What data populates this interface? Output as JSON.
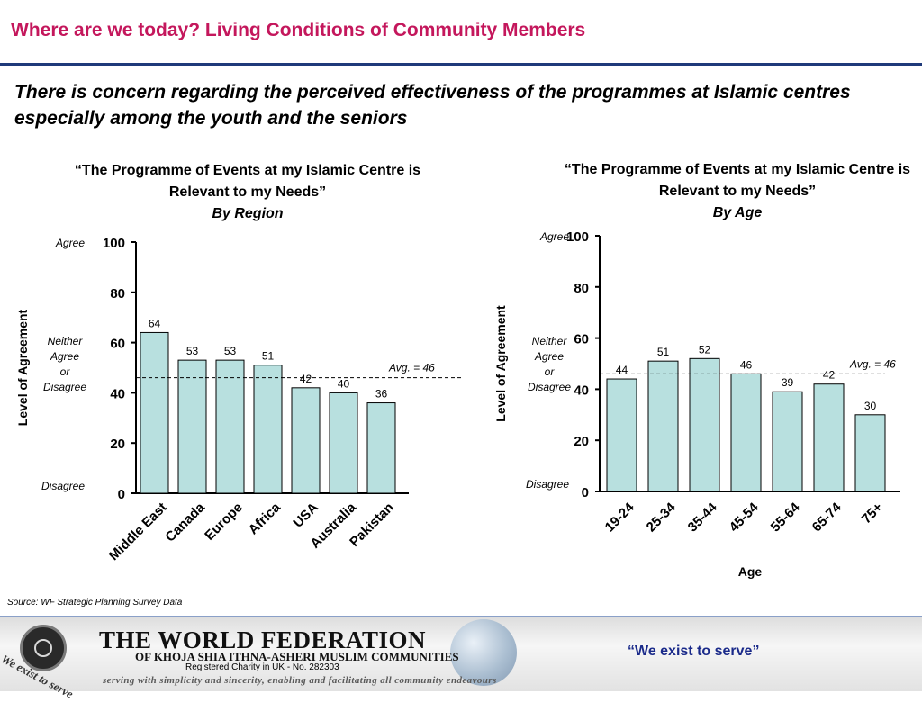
{
  "header": {
    "title": "Where are we today? Living Conditions of Community Members",
    "subtitle": "There is concern regarding the perceived effectiveness of the programmes at Islamic centres especially among the youth and the seniors"
  },
  "colors": {
    "title": "#c4175c",
    "bar_fill": "#b8e0df",
    "rule": "#1f3a7a",
    "motto": "#1a2a8a"
  },
  "chart_data": [
    {
      "type": "bar",
      "title": "“The Programme of Events at my Islamic Centre is Relevant to my Needs”",
      "subtitle": "By Region",
      "xlabel": "",
      "ylabel": "Level of Agreement",
      "categories": [
        "Middle East",
        "Canada",
        "Europe",
        "Africa",
        "USA",
        "Australia",
        "Pakistan"
      ],
      "values": [
        64,
        53,
        53,
        51,
        42,
        40,
        36
      ],
      "ylim": [
        0,
        100
      ],
      "yticks": [
        0,
        20,
        40,
        60,
        80,
        100
      ],
      "scale_labels": {
        "agree": "Agree",
        "neutral": [
          "Neither",
          "Agree",
          "or",
          "Disagree"
        ],
        "disagree": "Disagree"
      },
      "avg": {
        "value": 46,
        "label": "Avg. = 46"
      },
      "grid": false
    },
    {
      "type": "bar",
      "title": "“The Programme of Events at my Islamic Centre is Relevant to my Needs”",
      "subtitle": "By Age",
      "xlabel": "Age",
      "ylabel": "Level of Agreement",
      "categories": [
        "19-24",
        "25-34",
        "35-44",
        "45-54",
        "55-64",
        "65-74",
        "75+"
      ],
      "values": [
        44,
        51,
        52,
        46,
        39,
        42,
        30
      ],
      "ylim": [
        0,
        100
      ],
      "yticks": [
        0,
        20,
        40,
        60,
        80,
        100
      ],
      "scale_labels": {
        "agree": "Agree",
        "neutral": [
          "Neither",
          "Agree",
          "or",
          "Disagree"
        ],
        "disagree": "Disagree"
      },
      "avg": {
        "value": 46,
        "label": "Avg. = 46"
      },
      "grid": false
    }
  ],
  "source": "Source: WF Strategic Planning Survey Data",
  "footer": {
    "org_name": "THE WORLD FEDERATION",
    "org_sub": "OF KHOJA SHIA ITHNA-ASHERI MUSLIM COMMUNITIES",
    "charity": "Registered Charity in UK - No. 282303",
    "mission": "serving with simplicity and sincerity, enabling and facilitating all community endeavours",
    "logo_tagline": "We exist to serve",
    "motto": "“We exist to serve”"
  }
}
